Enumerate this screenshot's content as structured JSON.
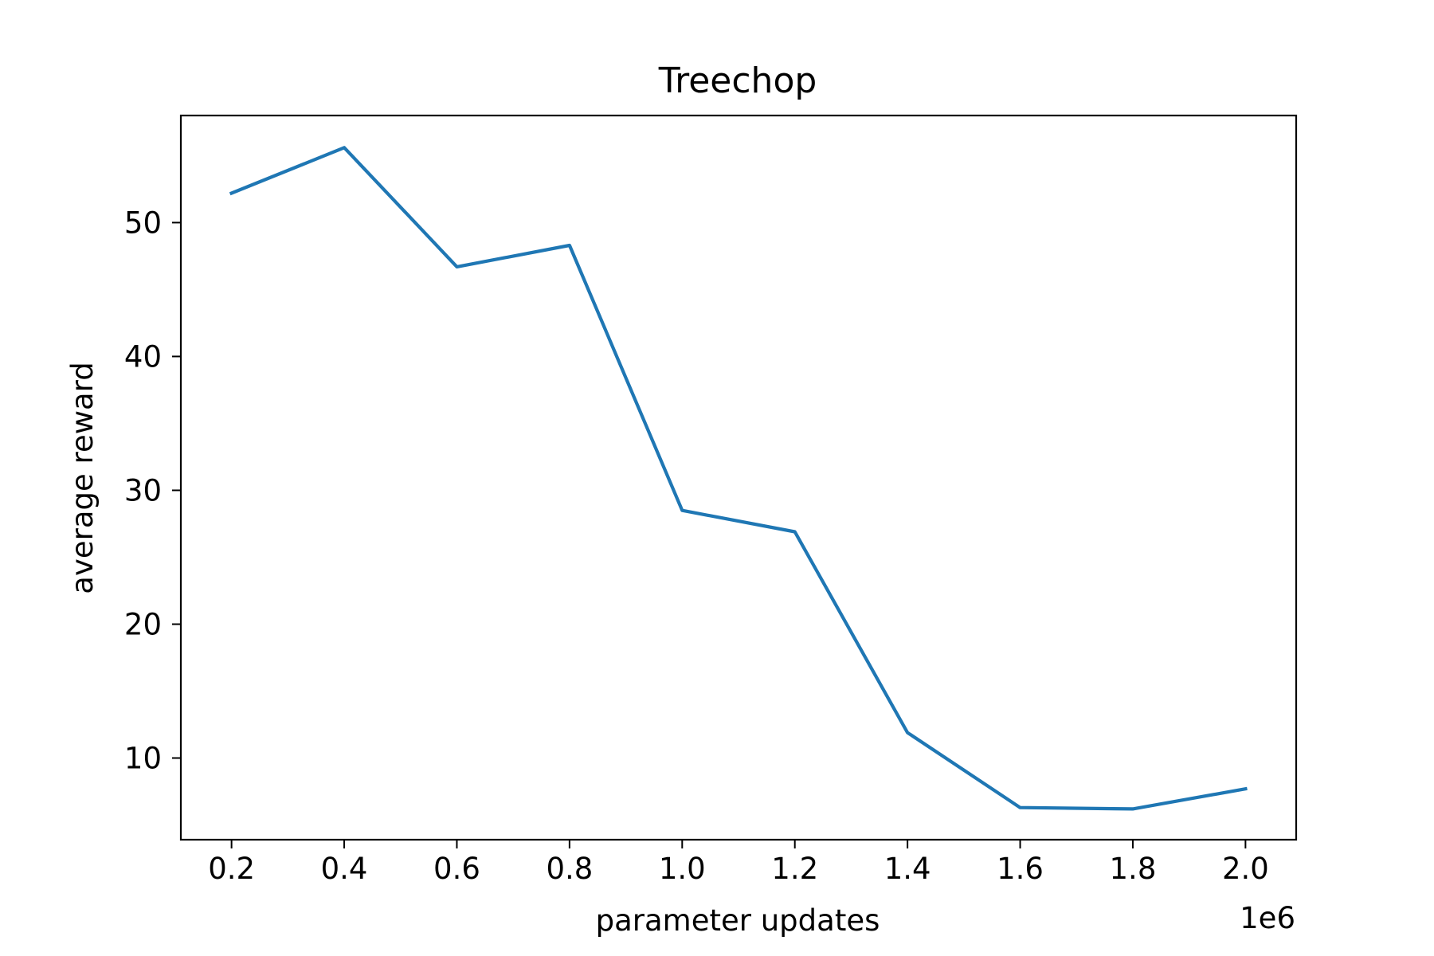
{
  "chart_data": {
    "type": "line",
    "title": "Treechop",
    "xlabel": "parameter updates",
    "ylabel": "average reward",
    "x_offset_label": "1e6",
    "x": [
      0.2,
      0.4,
      0.6,
      0.8,
      1.0,
      1.2,
      1.4,
      1.6,
      1.8,
      2.0
    ],
    "series": [
      {
        "values": [
          52.2,
          55.6,
          46.7,
          48.3,
          28.5,
          26.9,
          11.9,
          6.3,
          6.2,
          7.7
        ],
        "color": "#1f77b4"
      }
    ],
    "xlim": [
      0.11,
      2.09
    ],
    "ylim": [
      3.9,
      58.0
    ],
    "xticks": [
      "0.2",
      "0.4",
      "0.6",
      "0.8",
      "1.0",
      "1.2",
      "1.4",
      "1.6",
      "1.8",
      "2.0"
    ],
    "yticks": [
      "10",
      "20",
      "30",
      "40",
      "50"
    ],
    "grid": false,
    "legend": "none"
  }
}
